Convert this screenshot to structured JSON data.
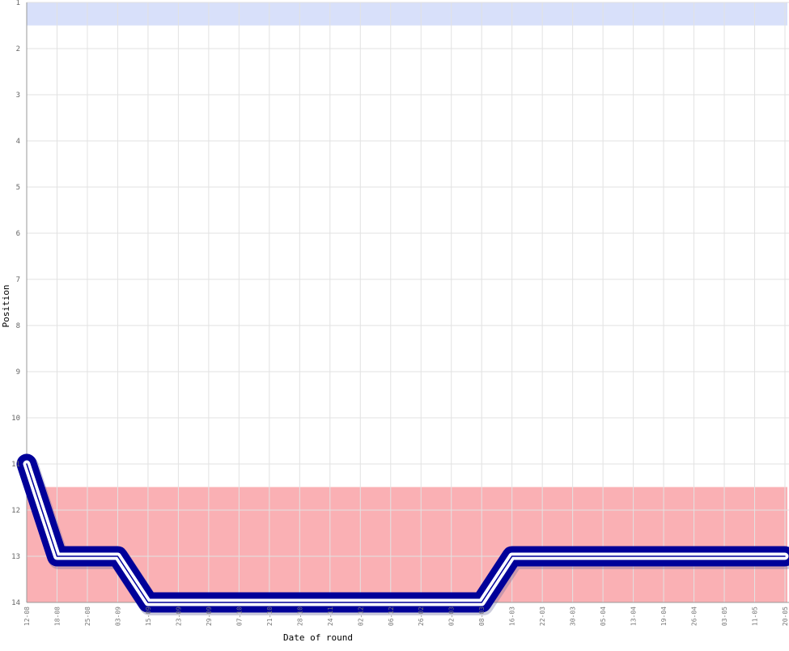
{
  "chart_data": {
    "type": "line",
    "xlabel": "Date of round",
    "ylabel": "Position",
    "y_reversed": true,
    "ylim": [
      1,
      14
    ],
    "y_ticks": [
      "1",
      "2",
      "3",
      "4",
      "5",
      "6",
      "7",
      "8",
      "9",
      "10",
      "11",
      "12",
      "13",
      "14"
    ],
    "grid": true,
    "x_tick_labels": [
      "12-08",
      "18-08",
      "25-08",
      "03-09",
      "15-09",
      "23-09",
      "29-09",
      "07-10",
      "21-10",
      "28-10",
      "24-11",
      "02-12",
      "06-12",
      "26-02",
      "02-03",
      "08-03",
      "16-03",
      "22-03",
      "30-03",
      "05-04",
      "13-04",
      "19-04",
      "26-04",
      "03-05",
      "11-05",
      "20-05"
    ],
    "bands": [
      {
        "from": 1,
        "to": 1.5,
        "color": "#d8e0fa",
        "meaning": "top"
      },
      {
        "from": 11.5,
        "to": 14,
        "color": "#fab0b4",
        "meaning": "relegation"
      }
    ],
    "series": [
      {
        "line_color": "#000099",
        "inner_color": "#ffffff",
        "values": [
          {
            "x": "12-08",
            "y": 11
          },
          {
            "x": "18-08",
            "y": 13
          },
          {
            "x": "25-08",
            "y": 13
          },
          {
            "x": "03-09",
            "y": 13
          },
          {
            "x": "15-09",
            "y": 14
          },
          {
            "x": "23-09",
            "y": 14
          },
          {
            "x": "29-09",
            "y": 14
          },
          {
            "x": "07-10",
            "y": 14
          },
          {
            "x": "21-10",
            "y": 14
          },
          {
            "x": "28-10",
            "y": 14
          },
          {
            "x": "24-11",
            "y": 14
          },
          {
            "x": "02-12",
            "y": 14
          },
          {
            "x": "06-12",
            "y": 14
          },
          {
            "x": "26-02",
            "y": 14
          },
          {
            "x": "02-03",
            "y": 14
          },
          {
            "x": "08-03",
            "y": 14
          },
          {
            "x": "16-03",
            "y": 13
          },
          {
            "x": "22-03",
            "y": 13
          },
          {
            "x": "30-03",
            "y": 13
          },
          {
            "x": "05-04",
            "y": 13
          },
          {
            "x": "13-04",
            "y": 13
          },
          {
            "x": "19-04",
            "y": 13
          },
          {
            "x": "26-04",
            "y": 13
          },
          {
            "x": "03-05",
            "y": 13
          },
          {
            "x": "11-05",
            "y": 13
          },
          {
            "x": "20-05",
            "y": 13
          }
        ]
      }
    ]
  }
}
